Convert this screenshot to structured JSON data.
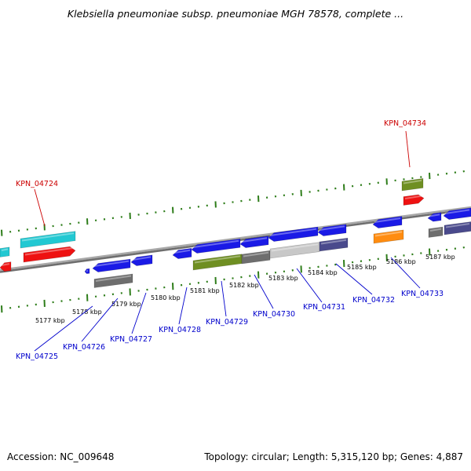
{
  "title": "Klebsiella pneumoniae subsp. pneumoniae MGH 78578, complete ...",
  "footer": {
    "accession": "Accession: NC_009648",
    "info": "Topology: circular; Length: 5,315,120 bp; Genes: 4,887"
  },
  "colors": {
    "blue": "#1a1ae6",
    "red": "#ee1111",
    "cyan": "#22c8d2",
    "gray": "#6e6e6e",
    "olive": "#6f8f22",
    "orange": "#ff8c10",
    "slate": "#4a4a8c",
    "light_gray": "#c8c8c8",
    "tick_green": "#2e7d1a",
    "backbone": "#8c8c8c",
    "label_blue": "#0000cc",
    "label_red": "#cc0000"
  },
  "scale": {
    "unit": "kbp",
    "ticks": [
      {
        "label": "5177 kbp",
        "kbp": 5177
      },
      {
        "label": "5178 kbp",
        "kbp": 5178
      },
      {
        "label": "5179 kbp",
        "kbp": 5179
      },
      {
        "label": "5180 kbp",
        "kbp": 5180
      },
      {
        "label": "5181 kbp",
        "kbp": 5181
      },
      {
        "label": "5182 kbp",
        "kbp": 5182
      },
      {
        "label": "5183 kbp",
        "kbp": 5183
      },
      {
        "label": "5184 kbp",
        "kbp": 5184
      },
      {
        "label": "5185 kbp",
        "kbp": 5185
      },
      {
        "label": "5186 kbp",
        "kbp": 5186
      },
      {
        "label": "5187 kbp",
        "kbp": 5187
      }
    ]
  },
  "gene_labels": [
    {
      "label": "KPN_04724",
      "strand": "forward",
      "color": "label_red"
    },
    {
      "label": "KPN_04725",
      "strand": "reverse",
      "color": "label_blue"
    },
    {
      "label": "KPN_04726",
      "strand": "reverse",
      "color": "label_blue"
    },
    {
      "label": "KPN_04727",
      "strand": "reverse",
      "color": "label_blue"
    },
    {
      "label": "KPN_04728",
      "strand": "reverse",
      "color": "label_blue"
    },
    {
      "label": "KPN_04729",
      "strand": "reverse",
      "color": "label_blue"
    },
    {
      "label": "KPN_04730",
      "strand": "reverse",
      "color": "label_blue"
    },
    {
      "label": "KPN_04731",
      "strand": "reverse",
      "color": "label_blue"
    },
    {
      "label": "KPN_04732",
      "strand": "reverse",
      "color": "label_blue"
    },
    {
      "label": "KPN_04733",
      "strand": "reverse",
      "color": "label_blue"
    },
    {
      "label": "KPN_04734",
      "strand": "forward",
      "color": "label_red"
    }
  ]
}
